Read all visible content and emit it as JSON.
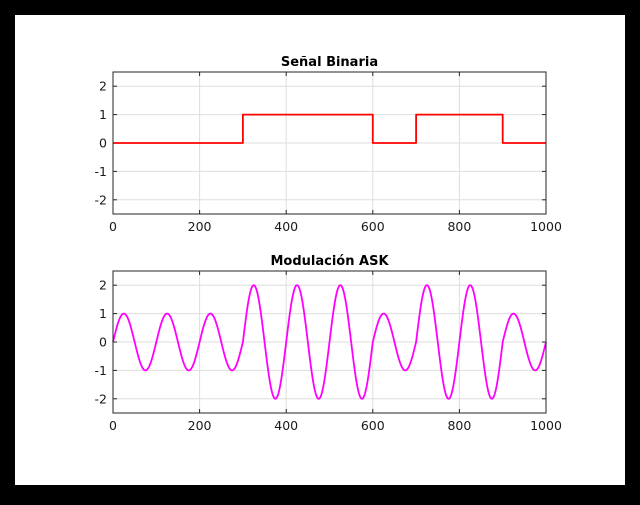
{
  "chart_data": [
    {
      "type": "line",
      "title": "Señal Binaria",
      "xlabel": "",
      "ylabel": "",
      "xlim": [
        0,
        1000
      ],
      "ylim": [
        -2.5,
        2.5
      ],
      "x_ticks": [
        "0",
        "200",
        "400",
        "600",
        "800",
        "1000"
      ],
      "y_ticks": [
        "2",
        "1",
        "0",
        "-1",
        "-2"
      ],
      "grid": true,
      "series": [
        {
          "color": "#ff0000",
          "x": [
            0,
            300,
            300,
            600,
            600,
            700,
            700,
            900,
            900,
            1000
          ],
          "y": [
            0,
            0,
            1,
            1,
            0,
            0,
            1,
            1,
            0,
            0
          ]
        }
      ]
    },
    {
      "type": "line",
      "title": "Modulación ASK",
      "xlabel": "",
      "ylabel": "",
      "xlim": [
        0,
        1000
      ],
      "ylim": [
        -2.5,
        2.5
      ],
      "x_ticks": [
        "0",
        "200",
        "400",
        "600",
        "800",
        "1000"
      ],
      "y_ticks": [
        "2",
        "1",
        "0",
        "-1",
        "-2"
      ],
      "grid": true,
      "carrier_period": 100,
      "amplitude_segments": [
        {
          "x_start": 0,
          "x_end": 300,
          "amplitude": 1
        },
        {
          "x_start": 300,
          "x_end": 600,
          "amplitude": 2
        },
        {
          "x_start": 600,
          "x_end": 700,
          "amplitude": 1
        },
        {
          "x_start": 700,
          "x_end": 900,
          "amplitude": 2
        },
        {
          "x_start": 900,
          "x_end": 1000,
          "amplitude": 1
        }
      ],
      "series": [
        {
          "color": "#ff00ff"
        }
      ]
    }
  ]
}
